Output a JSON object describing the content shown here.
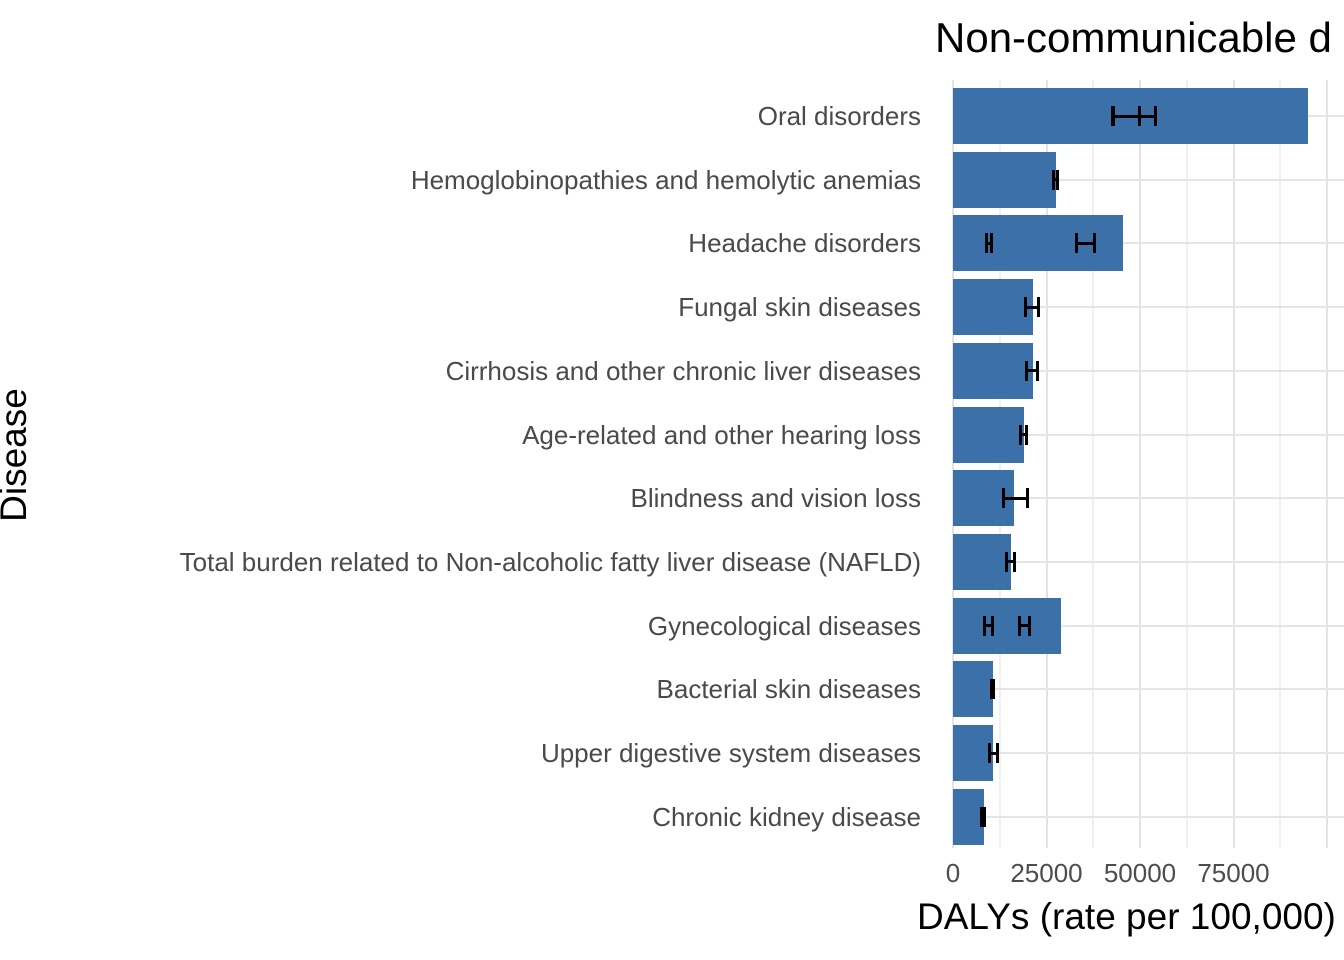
{
  "chart_data": {
    "type": "bar",
    "orientation": "horizontal",
    "title": "Non-communicable d",
    "xlabel": "DALYs (rate per 100,000)",
    "ylabel": "Disease",
    "xlim": [
      0,
      104500
    ],
    "grid": true,
    "legend": false,
    "x_ticks": [
      {
        "value": 0,
        "label": "0"
      },
      {
        "value": 25000,
        "label": "25000"
      },
      {
        "value": 50000,
        "label": "50000"
      },
      {
        "value": 75000,
        "label": "75000"
      }
    ],
    "gridlines_major": [
      0,
      25000,
      50000,
      75000,
      100000
    ],
    "gridlines_minor": [
      12500,
      37500,
      62500,
      87500
    ],
    "categories": [
      "Oral disorders",
      "Hemoglobinopathies and hemolytic anemias",
      "Headache disorders",
      "Fungal skin diseases",
      "Cirrhosis and other chronic liver diseases",
      "Age-related and other hearing loss",
      "Blindness and vision loss",
      "Total burden related to Non-alcoholic fatty liver disease (NAFLD)",
      "Gynecological diseases",
      "Bacterial skin diseases",
      "Upper digestive system diseases",
      "Chronic kidney disease"
    ],
    "values": [
      95000,
      27500,
      45500,
      21300,
      21500,
      19000,
      16300,
      15500,
      28900,
      10600,
      10700,
      8400
    ],
    "error_bars": [
      [
        [
          42200,
          50400
        ],
        [
          42400,
          54500
        ]
      ],
      [
        [
          26400,
          28300
        ]
      ],
      [
        [
          8600,
          10800
        ],
        [
          32600,
          38200
        ]
      ],
      [
        [
          19000,
          23300
        ]
      ],
      [
        [
          19300,
          23000
        ]
      ],
      [
        [
          17700,
          20000
        ]
      ],
      [
        [
          13100,
          20300
        ]
      ],
      [
        [
          14000,
          16800
        ]
      ],
      [
        [
          7900,
          11000
        ],
        [
          17300,
          20800
        ]
      ],
      [
        [
          10000,
          11200
        ]
      ],
      [
        [
          9300,
          12200
        ]
      ],
      [
        [
          7100,
          8800
        ]
      ]
    ],
    "colors": {
      "bar": "#3b70a8",
      "grid_major": "#e3e3e3",
      "grid_minor": "#f0f0f0",
      "axis_text": "#4a4a4a",
      "title_text": "#000000",
      "error_bar": "#000000",
      "background": "#ffffff"
    }
  }
}
